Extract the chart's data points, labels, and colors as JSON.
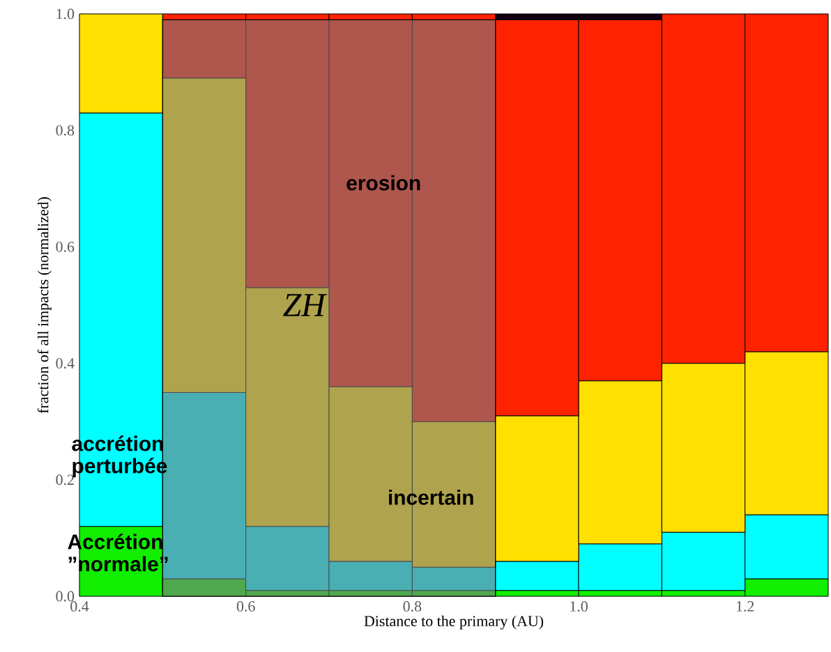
{
  "chart_data": {
    "type": "bar",
    "stacked": true,
    "xlabel": "Distance to the primary (AU)",
    "ylabel": "fraction of all impacts (normalized)",
    "x": [
      0.45,
      0.55,
      0.65,
      0.75,
      0.85,
      0.95,
      1.05,
      1.15,
      1.25
    ],
    "xlim": [
      0.4,
      1.3
    ],
    "ylim": [
      0,
      1
    ],
    "xticks": [
      {
        "value": 0.4,
        "label": "0.4"
      },
      {
        "value": 0.6,
        "label": "0.6"
      },
      {
        "value": 0.8,
        "label": "0.8"
      },
      {
        "value": 1.0,
        "label": "1.0"
      },
      {
        "value": 1.2,
        "label": "1.2"
      }
    ],
    "yticks": [
      {
        "value": 0,
        "label": "0.0"
      },
      {
        "value": 0.2,
        "label": "0.2"
      },
      {
        "value": 0.4,
        "label": "0.4"
      },
      {
        "value": 0.6,
        "label": "0.6"
      },
      {
        "value": 0.8,
        "label": "0.8"
      },
      {
        "value": 1.0,
        "label": "1.0"
      }
    ],
    "series": [
      {
        "name": "Accrétion ”normale”",
        "color": "#11ee00",
        "values": [
          0.12,
          0.03,
          0.01,
          0.01,
          0.01,
          0.01,
          0.01,
          0.01,
          0.03
        ]
      },
      {
        "name": "accrétion perturbée",
        "color": "#00ffff",
        "values": [
          0.71,
          0.32,
          0.11,
          0.05,
          0.04,
          0.05,
          0.08,
          0.1,
          0.11
        ]
      },
      {
        "name": "incertain",
        "color": "#ffe000",
        "values": [
          0.17,
          0.54,
          0.41,
          0.3,
          0.25,
          0.25,
          0.28,
          0.29,
          0.28
        ]
      },
      {
        "name": "erosion",
        "color": "#ff2200",
        "values": [
          0,
          0.11,
          0.47,
          0.64,
          0.7,
          0.68,
          0.62,
          0.6,
          0.58
        ]
      },
      {
        "color": "#100010",
        "values": [
          0,
          0,
          0,
          0,
          0,
          0.01,
          0.01,
          0,
          0
        ]
      }
    ],
    "bands": [
      {
        "axis": "x",
        "from": 0.5,
        "to": 0.9,
        "label": "ZH",
        "color": "#7a7a80"
      }
    ]
  }
}
